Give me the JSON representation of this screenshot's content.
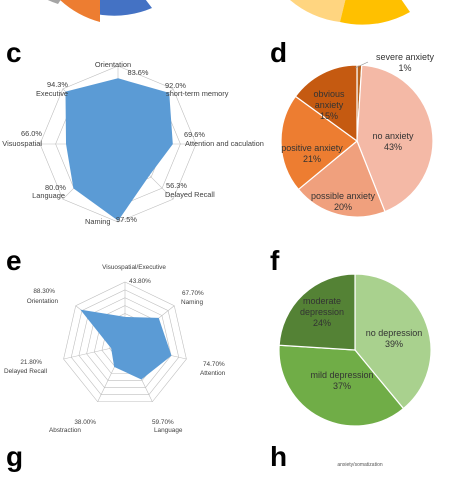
{
  "colors": {
    "radar_fill": "#5b9bd5",
    "grid": "#bfbfbf",
    "pie_edge": "#ffffff"
  },
  "panels": {
    "c": "c",
    "d": "d",
    "e": "e",
    "f": "f",
    "g": "g",
    "h": "h"
  },
  "h_cut_label": "anxiety/somatization",
  "chart_data": [
    {
      "panel": "c",
      "type": "radar",
      "categories": [
        "Orientation",
        "short-term memory",
        "Attention and caculation",
        "Delayed Recall",
        "Naming",
        "Language",
        "Visuospatial",
        "Executive"
      ],
      "display_values": [
        "83.6%",
        "92.0%",
        "69.6%",
        "56.3%",
        "97.5%",
        "80.0%",
        "66.0%",
        "94.3%"
      ],
      "values": [
        83.6,
        92.0,
        69.6,
        56.3,
        97.5,
        80.0,
        66.0,
        94.3
      ],
      "range": [
        0,
        100
      ],
      "grid": true,
      "color": "#5b9bd5"
    },
    {
      "panel": "d",
      "type": "pie",
      "slices": [
        {
          "label": "severe anxiety",
          "display": "1%",
          "value": 1,
          "color": "#b8621b"
        },
        {
          "label": "no anxiety",
          "display": "43%",
          "value": 43,
          "color": "#f4b9a6"
        },
        {
          "label": "possible anxiety",
          "display": "20%",
          "value": 20,
          "color": "#f0a07d"
        },
        {
          "label": "positive anxiety",
          "display": "21%",
          "value": 21,
          "color": "#ed7d31"
        },
        {
          "label": "obvious anxiety",
          "display": "15%",
          "value": 15,
          "color": "#c55a11"
        }
      ]
    },
    {
      "panel": "e",
      "type": "radar",
      "categories": [
        "Visuospatial/Executive",
        "Naming",
        "Attention",
        "Language",
        "Abstraction",
        "Delayed Recall",
        "Orientation"
      ],
      "display_values": [
        "43.80%",
        "67.70%",
        "74.70%",
        "59.70%",
        "38.00%",
        "21.80%",
        "88.30%"
      ],
      "values": [
        43.8,
        67.7,
        74.7,
        59.7,
        38.0,
        21.8,
        88.3
      ],
      "range": [
        0,
        100
      ],
      "grid": true,
      "color": "#5b9bd5"
    },
    {
      "panel": "f",
      "type": "pie",
      "slices": [
        {
          "label": "no depression",
          "display": "39%",
          "value": 39,
          "color": "#a9d18e"
        },
        {
          "label": "mild depression",
          "display": "37%",
          "value": 37,
          "color": "#70ad47"
        },
        {
          "label": "moderate depression",
          "display": "24%",
          "value": 24,
          "color": "#548235"
        }
      ]
    }
  ]
}
